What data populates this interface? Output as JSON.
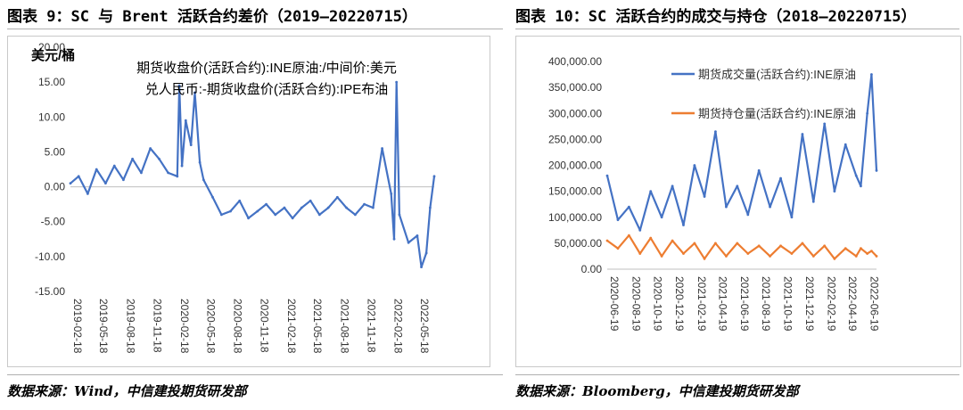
{
  "figures": [
    {
      "title": "图表 9：SC 与 Brent 活跃合约差价（2019—20220715）",
      "source": "数据来源：Wind，中信建投期货研发部"
    },
    {
      "title": "图表 10：SC 活跃合约的成交与持仓（2018—20220715）",
      "source": "数据来源：Bloomberg，中信建投期货研发部"
    }
  ],
  "colors": {
    "line_blue": "#4472c4",
    "line_orange": "#ed7d31",
    "axis": "#bfbfbf"
  },
  "chart_data": [
    {
      "type": "line",
      "ylabel": "美元/桶",
      "ylim": [
        -15,
        20
      ],
      "yticks": [
        "-15.00",
        "-10.00",
        "-5.00",
        "0.00",
        "5.00",
        "10.00",
        "15.00",
        "20.00"
      ],
      "ytick_values": [
        -15,
        -10,
        -5,
        0,
        5,
        10,
        15,
        20
      ],
      "xticks": [
        "2019-02-18",
        "2019-05-18",
        "2019-08-18",
        "2019-11-18",
        "2020-02-18",
        "2020-05-18",
        "2020-08-18",
        "2020-11-18",
        "2021-02-18",
        "2021-05-18",
        "2021-08-18",
        "2021-11-18",
        "2022-02-18",
        "2022-05-18"
      ],
      "legend_position": "top",
      "grid": false,
      "series": [
        {
          "name": "期货收盘价(活跃合约):INE原油:/中间价:美元兑人民币:-期货收盘价(活跃合约):IPE布油",
          "x": [
            "2019-02-18",
            "2019-03-18",
            "2019-04-18",
            "2019-05-18",
            "2019-06-18",
            "2019-07-18",
            "2019-08-18",
            "2019-09-18",
            "2019-10-18",
            "2019-11-18",
            "2019-12-18",
            "2020-01-18",
            "2020-02-18",
            "2020-02-25",
            "2020-03-05",
            "2020-03-18",
            "2020-04-05",
            "2020-04-18",
            "2020-05-05",
            "2020-05-18",
            "2020-06-18",
            "2020-07-18",
            "2020-08-18",
            "2020-09-18",
            "2020-10-18",
            "2020-11-18",
            "2020-12-18",
            "2021-01-18",
            "2021-02-18",
            "2021-03-18",
            "2021-04-18",
            "2021-05-18",
            "2021-06-18",
            "2021-07-18",
            "2021-08-18",
            "2021-09-18",
            "2021-10-18",
            "2021-11-18",
            "2021-12-18",
            "2022-01-18",
            "2022-02-18",
            "2022-02-28",
            "2022-03-08",
            "2022-03-18",
            "2022-04-18",
            "2022-05-18",
            "2022-06-01",
            "2022-06-18",
            "2022-07-01",
            "2022-07-15"
          ],
          "values": [
            0.5,
            1.5,
            -1.0,
            2.5,
            0.5,
            3.0,
            1.0,
            4.0,
            2.0,
            5.5,
            4.0,
            2.0,
            1.5,
            14.5,
            3.0,
            9.5,
            6.0,
            13.5,
            3.5,
            1.0,
            -1.5,
            -4.0,
            -3.5,
            -2.0,
            -4.5,
            -3.5,
            -2.5,
            -4.0,
            -3.0,
            -4.5,
            -3.0,
            -2.0,
            -4.0,
            -3.0,
            -1.5,
            -3.0,
            -4.0,
            -2.5,
            -3.0,
            5.5,
            -1.0,
            -7.5,
            15.0,
            -4.0,
            -8.0,
            -7.0,
            -11.5,
            -9.5,
            -3.0,
            1.5
          ]
        }
      ]
    },
    {
      "type": "line",
      "ylim": [
        0,
        400000
      ],
      "yticks": [
        "0.00",
        "50,000.00",
        "100,000.00",
        "150,000.00",
        "200,000.00",
        "250,000.00",
        "300,000.00",
        "350,000.00",
        "400,000.00"
      ],
      "ytick_values": [
        0,
        50000,
        100000,
        150000,
        200000,
        250000,
        300000,
        350000,
        400000
      ],
      "xticks": [
        "2020-06-19",
        "2020-08-19",
        "2020-10-19",
        "2020-12-19",
        "2021-02-19",
        "2021-04-19",
        "2021-06-19",
        "2021-08-19",
        "2021-10-19",
        "2021-12-19",
        "2022-02-19",
        "2022-04-19",
        "2022-06-19"
      ],
      "legend_position": "inside top-right",
      "grid": false,
      "series": [
        {
          "name": "期货成交量(活跃合约):INE原油",
          "x": [
            "2020-06-19",
            "2020-07-19",
            "2020-08-19",
            "2020-09-19",
            "2020-10-19",
            "2020-11-19",
            "2020-12-19",
            "2021-01-19",
            "2021-02-19",
            "2021-03-19",
            "2021-04-19",
            "2021-05-19",
            "2021-06-19",
            "2021-07-19",
            "2021-08-19",
            "2021-09-19",
            "2021-10-19",
            "2021-11-19",
            "2021-12-19",
            "2022-01-19",
            "2022-02-19",
            "2022-03-19",
            "2022-04-19",
            "2022-05-19",
            "2022-06-01",
            "2022-06-19",
            "2022-07-01",
            "2022-07-15"
          ],
          "values": [
            180000,
            95000,
            120000,
            75000,
            150000,
            100000,
            160000,
            85000,
            200000,
            140000,
            265000,
            120000,
            160000,
            105000,
            190000,
            120000,
            175000,
            100000,
            260000,
            130000,
            280000,
            150000,
            240000,
            180000,
            160000,
            300000,
            375000,
            190000
          ]
        },
        {
          "name": "期货持仓量(活跃合约):INE原油",
          "x": [
            "2020-06-19",
            "2020-07-19",
            "2020-08-19",
            "2020-09-19",
            "2020-10-19",
            "2020-11-19",
            "2020-12-19",
            "2021-01-19",
            "2021-02-19",
            "2021-03-19",
            "2021-04-19",
            "2021-05-19",
            "2021-06-19",
            "2021-07-19",
            "2021-08-19",
            "2021-09-19",
            "2021-10-19",
            "2021-11-19",
            "2021-12-19",
            "2022-01-19",
            "2022-02-19",
            "2022-03-19",
            "2022-04-19",
            "2022-05-19",
            "2022-06-01",
            "2022-06-19",
            "2022-07-01",
            "2022-07-15"
          ],
          "values": [
            55000,
            40000,
            65000,
            30000,
            60000,
            25000,
            55000,
            30000,
            50000,
            20000,
            50000,
            25000,
            50000,
            30000,
            45000,
            25000,
            45000,
            30000,
            50000,
            25000,
            45000,
            20000,
            40000,
            25000,
            40000,
            30000,
            35000,
            25000
          ]
        }
      ]
    }
  ]
}
